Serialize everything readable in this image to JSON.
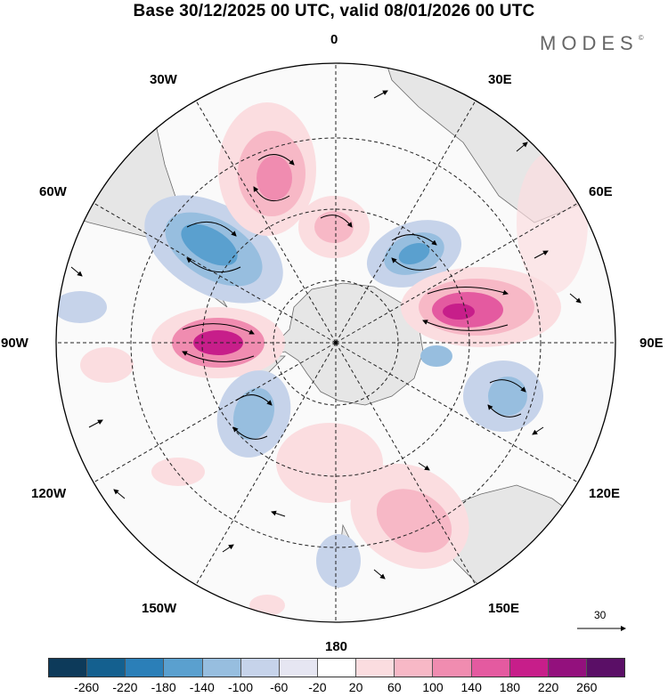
{
  "title": "Base 30/12/2025 00 UTC, valid 08/01/2026 00 UTC",
  "brand": {
    "text": "MODES",
    "mark": "©"
  },
  "map": {
    "projection": "south-polar-stereographic",
    "meridian_labels": {
      "m0": "0",
      "m30e": "30E",
      "m60e": "60E",
      "m90e": "90E",
      "m120e": "120E",
      "m150e": "150E",
      "m180": "180",
      "m150w": "150W",
      "m120w": "120W",
      "m90w": "90W",
      "m60w": "60W",
      "m30w": "30W"
    },
    "field": "height-anomaly-with-wind-vectors",
    "reference_vector": {
      "value": "30"
    }
  },
  "legend": {
    "colors": [
      "#0d3a5a",
      "#14608f",
      "#2b7fb8",
      "#5aa0cf",
      "#97bedf",
      "#c6d3ea",
      "#e6e6f2",
      "#ffffff",
      "#fbdde0",
      "#f7b8c6",
      "#f08cb0",
      "#e45aa0",
      "#c71e8a",
      "#93107d",
      "#5a0f66"
    ],
    "ticks": [
      "-260",
      "-220",
      "-180",
      "-140",
      "-100",
      "-60",
      "-20",
      "20",
      "60",
      "100",
      "140",
      "180",
      "220",
      "260"
    ]
  }
}
